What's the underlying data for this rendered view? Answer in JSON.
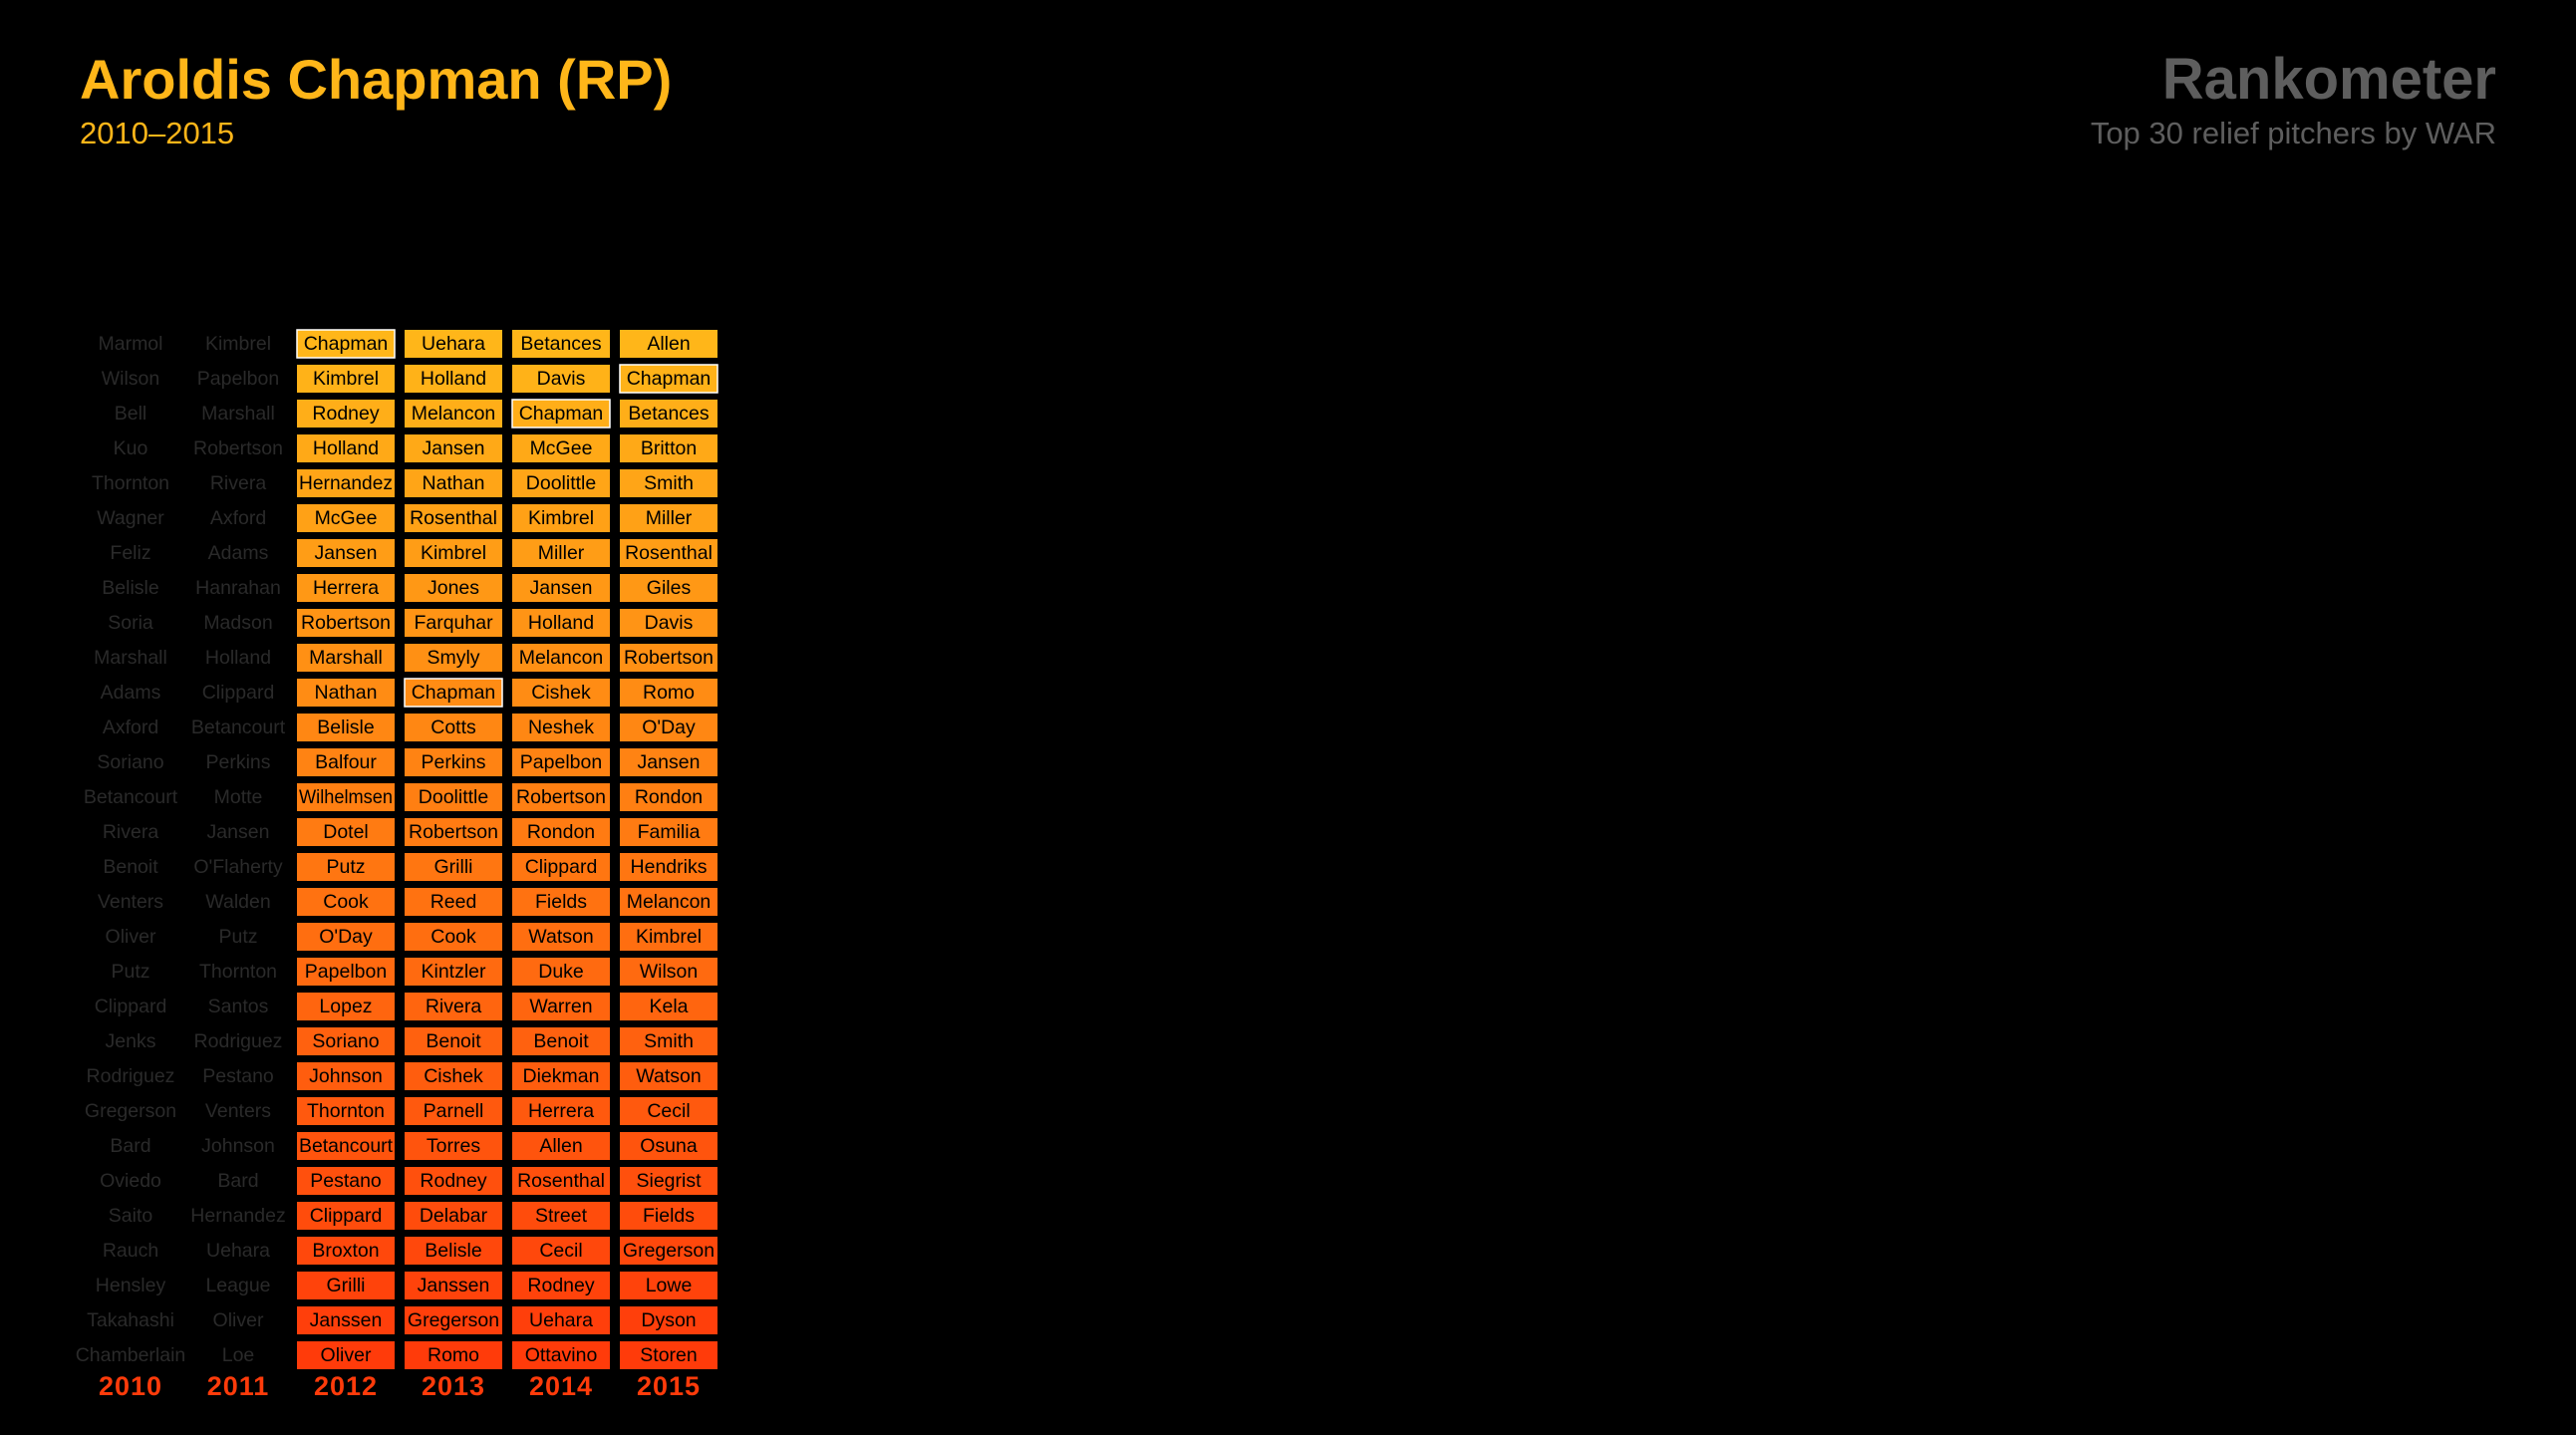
{
  "header": {
    "player": "Aroldis Chapman (RP)",
    "years": "2010–2015",
    "brand": "Rankometer",
    "subtitle": "Top 30 relief pitchers by WAR"
  },
  "colors": {
    "background": "#000000",
    "title": "#ffb619",
    "brand": "#5e5e5e",
    "dim_text": "#2a2a2a",
    "cell_text": "#000000",
    "rank_top": "#ffb619",
    "rank_bottom": "#ff3b0a",
    "year_label": "#ff3b0a"
  },
  "chart_data": {
    "type": "table",
    "highlight_player": "Chapman",
    "highlighted_years": [
      "2012",
      "2013",
      "2014",
      "2015"
    ],
    "rows_per_column": 30,
    "columns": [
      {
        "year": "2010",
        "names": [
          "Marmol",
          "Wilson",
          "Bell",
          "Kuo",
          "Thornton",
          "Wagner",
          "Feliz",
          "Belisle",
          "Soria",
          "Marshall",
          "Adams",
          "Axford",
          "Soriano",
          "Betancourt",
          "Rivera",
          "Benoit",
          "Venters",
          "Oliver",
          "Putz",
          "Clippard",
          "Jenks",
          "Rodriguez",
          "Gregerson",
          "Bard",
          "Oviedo",
          "Saito",
          "Rauch",
          "Hensley",
          "Takahashi",
          "Chamberlain"
        ]
      },
      {
        "year": "2011",
        "names": [
          "Kimbrel",
          "Papelbon",
          "Marshall",
          "Robertson",
          "Rivera",
          "Axford",
          "Adams",
          "Hanrahan",
          "Madson",
          "Holland",
          "Clippard",
          "Betancourt",
          "Perkins",
          "Motte",
          "Jansen",
          "O'Flaherty",
          "Walden",
          "Putz",
          "Thornton",
          "Santos",
          "Rodriguez",
          "Pestano",
          "Venters",
          "Johnson",
          "Bard",
          "Hernandez",
          "Uehara",
          "League",
          "Oliver",
          "Loe"
        ]
      },
      {
        "year": "2012",
        "names": [
          "Chapman",
          "Kimbrel",
          "Rodney",
          "Holland",
          "Hernandez",
          "McGee",
          "Jansen",
          "Herrera",
          "Robertson",
          "Marshall",
          "Nathan",
          "Belisle",
          "Balfour",
          "Wilhelmsen",
          "Dotel",
          "Putz",
          "Cook",
          "O'Day",
          "Papelbon",
          "Lopez",
          "Soriano",
          "Johnson",
          "Thornton",
          "Betancourt",
          "Pestano",
          "Clippard",
          "Broxton",
          "Grilli",
          "Janssen",
          "Oliver"
        ]
      },
      {
        "year": "2013",
        "names": [
          "Uehara",
          "Holland",
          "Melancon",
          "Jansen",
          "Nathan",
          "Rosenthal",
          "Kimbrel",
          "Jones",
          "Farquhar",
          "Smyly",
          "Chapman",
          "Cotts",
          "Perkins",
          "Doolittle",
          "Robertson",
          "Grilli",
          "Reed",
          "Cook",
          "Kintzler",
          "Rivera",
          "Benoit",
          "Cishek",
          "Parnell",
          "Torres",
          "Rodney",
          "Delabar",
          "Belisle",
          "Janssen",
          "Gregerson",
          "Romo"
        ]
      },
      {
        "year": "2014",
        "names": [
          "Betances",
          "Davis",
          "Chapman",
          "McGee",
          "Doolittle",
          "Kimbrel",
          "Miller",
          "Jansen",
          "Holland",
          "Melancon",
          "Cishek",
          "Neshek",
          "Papelbon",
          "Robertson",
          "Rondon",
          "Clippard",
          "Fields",
          "Watson",
          "Duke",
          "Warren",
          "Benoit",
          "Diekman",
          "Herrera",
          "Allen",
          "Rosenthal",
          "Street",
          "Cecil",
          "Rodney",
          "Uehara",
          "Ottavino"
        ]
      },
      {
        "year": "2015",
        "names": [
          "Allen",
          "Chapman",
          "Betances",
          "Britton",
          "Smith",
          "Miller",
          "Rosenthal",
          "Giles",
          "Davis",
          "Robertson",
          "Romo",
          "O'Day",
          "Jansen",
          "Rondon",
          "Familia",
          "Hendriks",
          "Melancon",
          "Kimbrel",
          "Wilson",
          "Kela",
          "Smith",
          "Watson",
          "Cecil",
          "Osuna",
          "Siegrist",
          "Fields",
          "Gregerson",
          "Lowe",
          "Dyson",
          "Storen"
        ]
      }
    ]
  }
}
